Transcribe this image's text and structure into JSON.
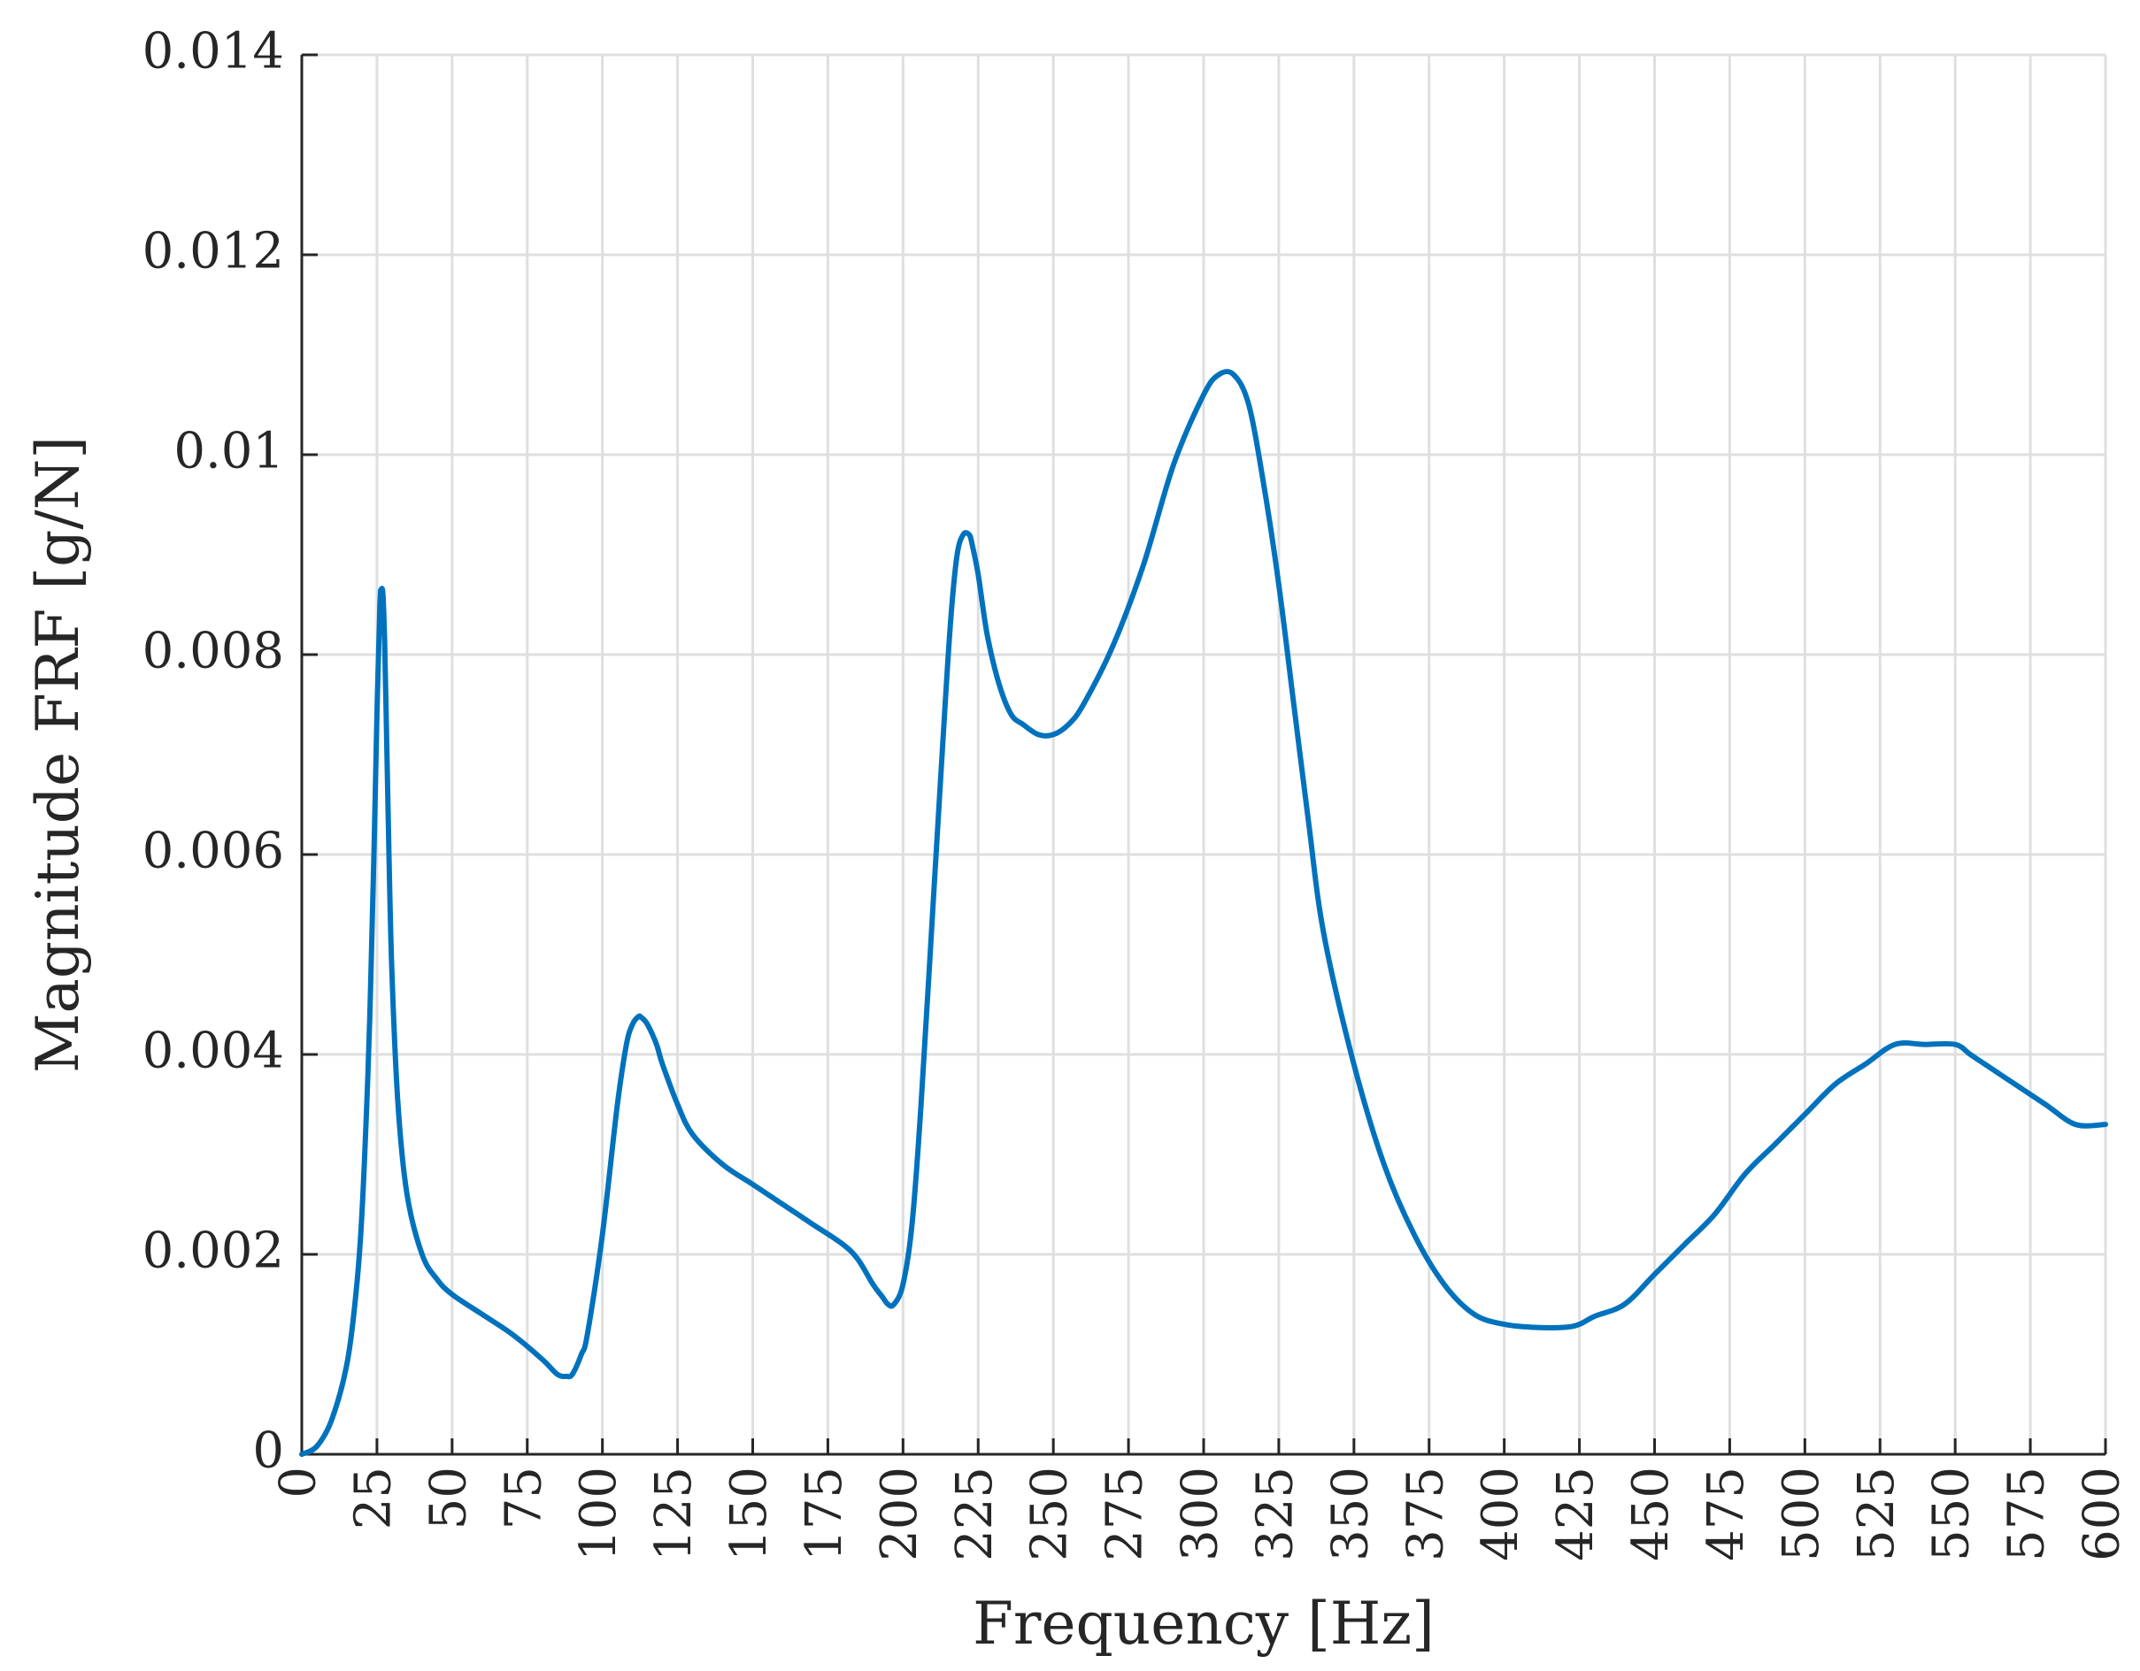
{
  "chart_data": {
    "type": "line",
    "title": "",
    "xlabel": "Frequency [Hz]",
    "ylabel": "Magnitude FRF [g/N]",
    "xlim": [
      0,
      600
    ],
    "ylim": [
      0,
      0.014
    ],
    "xticks": [
      0,
      25,
      50,
      75,
      100,
      125,
      150,
      175,
      200,
      225,
      250,
      275,
      300,
      325,
      350,
      375,
      400,
      425,
      450,
      475,
      500,
      525,
      550,
      575,
      600
    ],
    "xtick_labels": [
      "0",
      "25",
      "50",
      "75",
      "100",
      "125",
      "150",
      "175",
      "200",
      "225",
      "250",
      "275",
      "300",
      "325",
      "350",
      "375",
      "400",
      "425",
      "450",
      "475",
      "500",
      "525",
      "550",
      "575",
      "600"
    ],
    "yticks": [
      0,
      0.002,
      0.004,
      0.006,
      0.008,
      0.01,
      0.012,
      0.014
    ],
    "ytick_labels": [
      "0",
      "0.002",
      "0.004",
      "0.006",
      "0.008",
      "0.01",
      "0.012",
      "0.014"
    ],
    "grid": true,
    "line_color": "#0072BD",
    "series": [
      {
        "x": [
          0,
          5,
          10,
          15,
          18,
          20,
          22,
          23,
          24,
          25,
          26,
          26.5,
          27,
          27.5,
          28,
          29,
          30,
          32,
          35,
          40,
          45,
          50,
          60,
          70,
          80,
          85,
          88,
          90,
          93,
          95,
          100,
          105,
          108,
          110,
          112,
          113,
          115,
          118,
          120,
          125,
          130,
          140,
          150,
          160,
          170,
          180,
          185,
          190,
          193,
          195,
          197,
          200,
          203,
          206,
          210,
          214,
          216,
          218,
          220,
          222,
          223,
          225,
          228,
          232,
          236,
          240,
          245,
          250,
          255,
          260,
          270,
          280,
          290,
          300,
          305,
          310,
          315,
          320,
          325,
          330,
          335,
          340,
          350,
          360,
          370,
          380,
          390,
          400,
          410,
          420,
          425,
          430,
          440,
          450,
          460,
          470,
          480,
          490,
          500,
          510,
          520,
          530,
          540,
          550,
          555,
          560,
          570,
          580,
          590,
          600
        ],
        "y": [
          0,
          8e-05,
          0.00035,
          0.0009,
          0.0016,
          0.0024,
          0.0038,
          0.0048,
          0.006,
          0.0074,
          0.0085,
          0.00865,
          0.0086,
          0.0082,
          0.0075,
          0.006,
          0.0048,
          0.0035,
          0.0026,
          0.002,
          0.00175,
          0.0016,
          0.0014,
          0.0012,
          0.00095,
          0.0008,
          0.00078,
          0.0008,
          0.001,
          0.0012,
          0.0022,
          0.0035,
          0.0041,
          0.0043,
          0.00438,
          0.00437,
          0.0043,
          0.0041,
          0.0039,
          0.0035,
          0.0032,
          0.0029,
          0.0027,
          0.0025,
          0.0023,
          0.0021,
          0.00195,
          0.0017,
          0.00158,
          0.0015,
          0.0015,
          0.0017,
          0.0023,
          0.0035,
          0.0055,
          0.0075,
          0.0084,
          0.009,
          0.0092,
          0.0092,
          0.0091,
          0.0088,
          0.0082,
          0.0077,
          0.0074,
          0.0073,
          0.0072,
          0.0072,
          0.0073,
          0.0075,
          0.0081,
          0.0089,
          0.0099,
          0.0106,
          0.0108,
          0.0108,
          0.0105,
          0.0097,
          0.0087,
          0.0075,
          0.0063,
          0.0052,
          0.0039,
          0.0029,
          0.0022,
          0.0017,
          0.0014,
          0.0013,
          0.00127,
          0.00127,
          0.0013,
          0.00138,
          0.0015,
          0.0018,
          0.0021,
          0.0024,
          0.0028,
          0.0031,
          0.0034,
          0.0037,
          0.0039,
          0.0041,
          0.0041,
          0.0041,
          0.004,
          0.0039,
          0.0037,
          0.0035,
          0.0033,
          0.0033
        ]
      }
    ]
  }
}
